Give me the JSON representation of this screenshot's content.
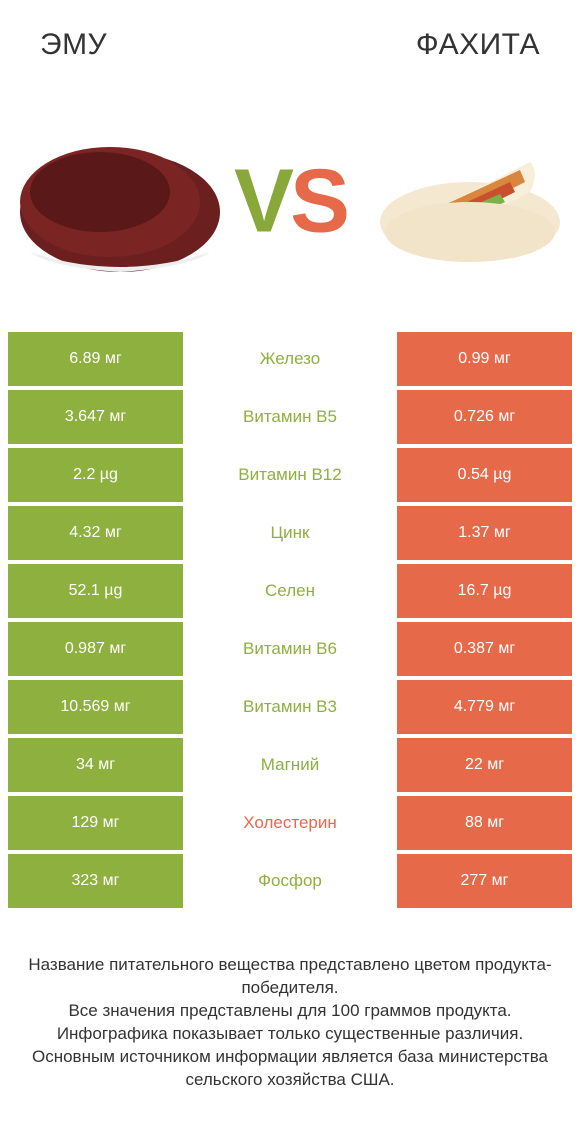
{
  "colors": {
    "green": "#8eb03e",
    "orange": "#e66a4a",
    "green_text": "#8eb03e",
    "orange_text": "#e66a4a",
    "white": "#ffffff",
    "dark": "#333333"
  },
  "header": {
    "left_title": "Эму",
    "right_title": "Фахита",
    "vs_v": "V",
    "vs_s": "S"
  },
  "hero_images": {
    "left_alt": "emu-meat",
    "right_alt": "fajita-wrap"
  },
  "table": {
    "left_bg": "#8eb03e",
    "right_bg": "#e66a4a",
    "rows": [
      {
        "left": "6.89 мг",
        "label": "Железо",
        "right": "0.99 мг",
        "label_color": "#8eb03e"
      },
      {
        "left": "3.647 мг",
        "label": "Витамин B5",
        "right": "0.726 мг",
        "label_color": "#8eb03e"
      },
      {
        "left": "2.2 µg",
        "label": "Витамин B12",
        "right": "0.54 µg",
        "label_color": "#8eb03e"
      },
      {
        "left": "4.32 мг",
        "label": "Цинк",
        "right": "1.37 мг",
        "label_color": "#8eb03e"
      },
      {
        "left": "52.1 µg",
        "label": "Селен",
        "right": "16.7 µg",
        "label_color": "#8eb03e"
      },
      {
        "left": "0.987 мг",
        "label": "Витамин B6",
        "right": "0.387 мг",
        "label_color": "#8eb03e"
      },
      {
        "left": "10.569 мг",
        "label": "Витамин B3",
        "right": "4.779 мг",
        "label_color": "#8eb03e"
      },
      {
        "left": "34 мг",
        "label": "Магний",
        "right": "22 мг",
        "label_color": "#8eb03e"
      },
      {
        "left": "129 мг",
        "label": "Холестерин",
        "right": "88 мг",
        "label_color": "#e66a4a"
      },
      {
        "left": "323 мг",
        "label": "Фосфор",
        "right": "277 мг",
        "label_color": "#8eb03e"
      }
    ]
  },
  "footer": {
    "text": "Название питательного вещества представлено цветом продукта-победителя.\nВсе значения представлены для 100 граммов продукта.\nИнфографика показывает только существенные различия.\nОсновным источником информации является база министерства сельского хозяйства США."
  },
  "typography": {
    "title_fontsize": 30,
    "vs_fontsize": 90,
    "cell_fontsize": 16,
    "label_fontsize": 17,
    "footer_fontsize": 17
  }
}
